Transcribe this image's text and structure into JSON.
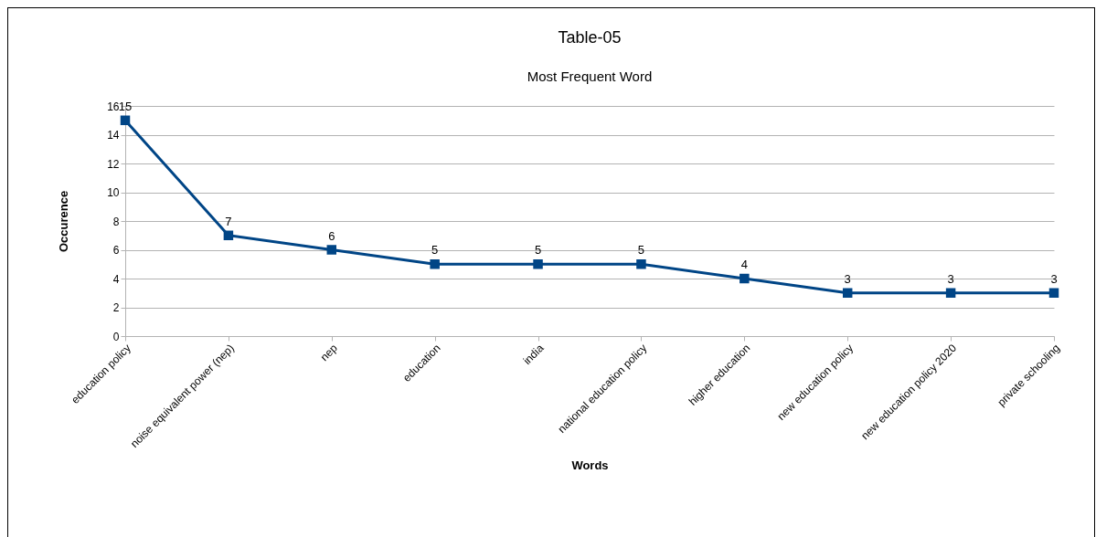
{
  "chart_data": {
    "type": "line",
    "title": "Table-05",
    "subtitle": "Most Frequent Word",
    "xlabel": "Words",
    "ylabel": "Occurence",
    "categories": [
      "education policy",
      "noise equivalent power (nep)",
      "nep",
      "education",
      "india",
      "national education policy",
      "higher education",
      "new education policy",
      "new education policy 2020",
      "private schooling"
    ],
    "series": [
      {
        "color": "#004586",
        "values": [
          15,
          7,
          6,
          5,
          5,
          5,
          4,
          3,
          3,
          3
        ]
      }
    ],
    "ylim": [
      0,
      16
    ],
    "yticks": [
      0,
      2,
      4,
      6,
      8,
      10,
      12,
      14,
      16
    ],
    "grid": "y",
    "data_labels": true,
    "marker": "square",
    "line_style": "solid"
  }
}
